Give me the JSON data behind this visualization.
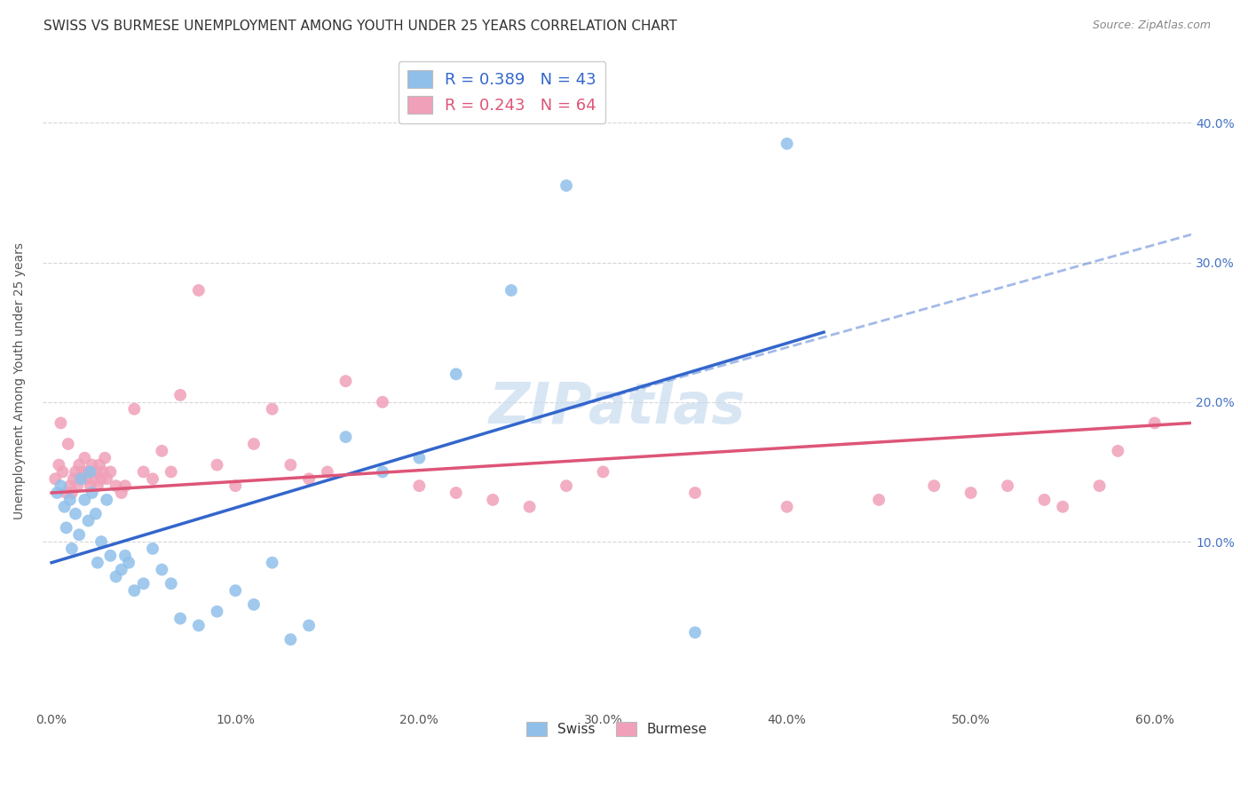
{
  "title": "SWISS VS BURMESE UNEMPLOYMENT AMONG YOUTH UNDER 25 YEARS CORRELATION CHART",
  "source": "Source: ZipAtlas.com",
  "ylabel": "Unemployment Among Youth under 25 years",
  "xlim": [
    -0.5,
    62
  ],
  "ylim": [
    -2,
    45
  ],
  "xlabel_vals": [
    0,
    10,
    20,
    30,
    40,
    50,
    60
  ],
  "ylabel_vals": [
    10,
    20,
    30,
    40
  ],
  "swiss_R": 0.389,
  "swiss_N": 43,
  "burmese_R": 0.243,
  "burmese_N": 64,
  "swiss_color": "#90C0EA",
  "burmese_color": "#F0A0B8",
  "swiss_line_color": "#3366CC",
  "burmese_line_color": "#DD5577",
  "watermark_color": "#C8DCF0",
  "swiss_x": [
    0.3,
    0.5,
    0.7,
    0.8,
    1.0,
    1.1,
    1.3,
    1.5,
    1.6,
    1.8,
    2.0,
    2.1,
    2.2,
    2.4,
    2.5,
    2.7,
    3.0,
    3.2,
    3.5,
    3.8,
    4.0,
    4.2,
    4.5,
    5.0,
    5.5,
    6.0,
    6.5,
    7.0,
    8.0,
    9.0,
    10.0,
    11.0,
    12.0,
    13.0,
    14.0,
    16.0,
    18.0,
    20.0,
    22.0,
    25.0,
    28.0,
    35.0,
    40.0
  ],
  "swiss_y": [
    13.5,
    14.0,
    12.5,
    11.0,
    13.0,
    9.5,
    12.0,
    10.5,
    14.5,
    13.0,
    11.5,
    15.0,
    13.5,
    12.0,
    8.5,
    10.0,
    13.0,
    9.0,
    7.5,
    8.0,
    9.0,
    8.5,
    6.5,
    7.0,
    9.5,
    8.0,
    7.0,
    4.5,
    4.0,
    5.0,
    6.5,
    5.5,
    8.5,
    3.0,
    4.0,
    17.5,
    15.0,
    16.0,
    22.0,
    28.0,
    35.5,
    3.5,
    38.5
  ],
  "burmese_x": [
    0.2,
    0.4,
    0.5,
    0.6,
    0.8,
    0.9,
    1.0,
    1.1,
    1.2,
    1.3,
    1.4,
    1.5,
    1.6,
    1.7,
    1.8,
    1.9,
    2.0,
    2.1,
    2.2,
    2.3,
    2.4,
    2.5,
    2.6,
    2.7,
    2.8,
    2.9,
    3.0,
    3.2,
    3.5,
    3.8,
    4.0,
    4.5,
    5.0,
    5.5,
    6.0,
    6.5,
    7.0,
    8.0,
    9.0,
    10.0,
    11.0,
    12.0,
    13.0,
    14.0,
    15.0,
    16.0,
    18.0,
    20.0,
    22.0,
    24.0,
    26.0,
    28.0,
    30.0,
    35.0,
    40.0,
    45.0,
    48.0,
    50.0,
    52.0,
    54.0,
    55.0,
    57.0,
    58.0,
    60.0
  ],
  "burmese_y": [
    14.5,
    15.5,
    18.5,
    15.0,
    13.5,
    17.0,
    14.0,
    13.5,
    14.5,
    15.0,
    14.0,
    15.5,
    14.5,
    15.0,
    16.0,
    14.5,
    15.0,
    14.0,
    15.5,
    14.5,
    15.0,
    14.0,
    15.5,
    14.5,
    15.0,
    16.0,
    14.5,
    15.0,
    14.0,
    13.5,
    14.0,
    19.5,
    15.0,
    14.5,
    16.5,
    15.0,
    20.5,
    28.0,
    15.5,
    14.0,
    17.0,
    19.5,
    15.5,
    14.5,
    15.0,
    21.5,
    20.0,
    14.0,
    13.5,
    13.0,
    12.5,
    14.0,
    15.0,
    13.5,
    12.5,
    13.0,
    14.0,
    13.5,
    14.0,
    13.0,
    12.5,
    14.0,
    16.5,
    18.5
  ],
  "swiss_line_x0": 0,
  "swiss_line_y0": 8.5,
  "swiss_line_x1": 42,
  "swiss_line_y1": 25.0,
  "swiss_dash_x0": 28,
  "swiss_dash_y0": 19.5,
  "swiss_dash_x1": 62,
  "swiss_dash_y1": 32.0,
  "burmese_line_x0": 0,
  "burmese_line_y0": 13.5,
  "burmese_line_x1": 62,
  "burmese_line_y1": 18.5
}
